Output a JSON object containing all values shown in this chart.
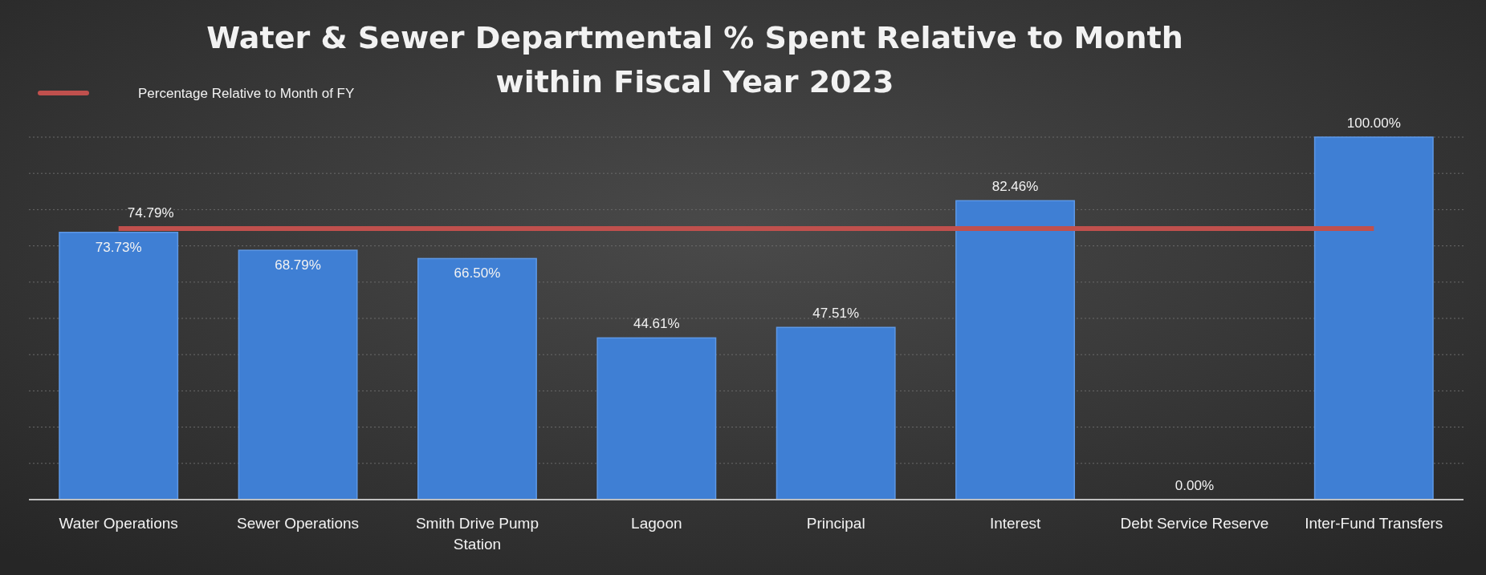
{
  "chart_data": {
    "type": "bar",
    "title": "Water & Sewer Departmental % Spent Relative to Month within Fiscal Year 2023",
    "categories": [
      "Water Operations",
      "Sewer Operations",
      "Smith Drive Pump Station",
      "Lagoon",
      "Principal",
      "Interest",
      "Debt Service Reserve",
      "Inter-Fund Transfers"
    ],
    "series": [
      {
        "color": "#3f7fd4",
        "values": [
          73.73,
          68.79,
          66.5,
          44.61,
          47.51,
          82.46,
          0,
          100
        ],
        "value_labels": [
          "73.73%",
          "68.79%",
          "66.50%",
          "44.61%",
          "47.51%",
          "82.46%",
          "0.00%",
          "100.00%"
        ]
      },
      {
        "type": "line",
        "name": "Percentage Relative to Month of FY",
        "color": "#c0504d",
        "values": [
          74.79,
          74.79,
          74.79,
          74.79,
          74.79,
          74.79,
          74.79,
          74.79
        ],
        "value_labels": [
          "74.79%",
          null,
          null,
          null,
          null,
          null,
          null,
          null
        ]
      }
    ],
    "ylim": [
      0,
      100
    ],
    "yticks": [
      {
        "value": 0,
        "label": null
      },
      {
        "value": 10,
        "label": null
      },
      {
        "value": 20,
        "label": null
      },
      {
        "value": 30,
        "label": null
      },
      {
        "value": 40,
        "label": null
      },
      {
        "value": 50,
        "label": null
      },
      {
        "value": 60,
        "label": null
      },
      {
        "value": 70,
        "label": null
      },
      {
        "value": 80,
        "label": null
      },
      {
        "value": 90,
        "label": null
      },
      {
        "value": 100,
        "label": null
      }
    ],
    "tick_labels": "x",
    "grid": "y",
    "legend": "top left"
  }
}
